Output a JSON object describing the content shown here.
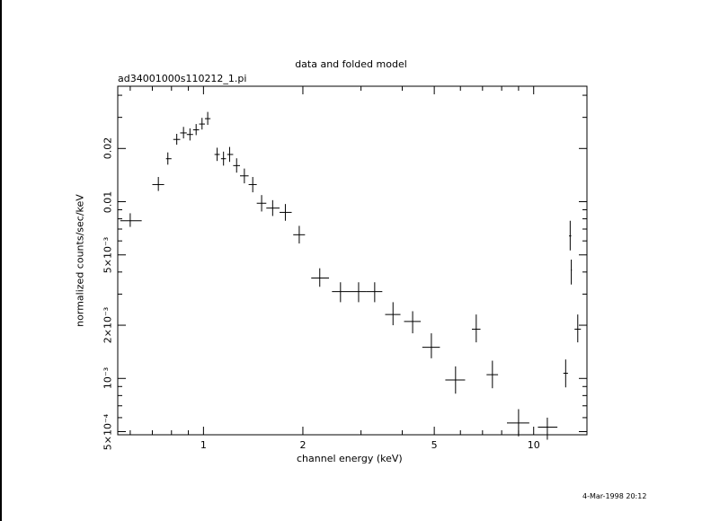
{
  "chart_data": {
    "type": "scatter",
    "title": "data and folded model",
    "subtitle": "ad34001000s110212_1.pi",
    "xlabel": "channel energy (keV)",
    "ylabel": "normalized counts/sec/keV",
    "xscale": "log",
    "yscale": "log",
    "xlim": [
      0.55,
      14.5
    ],
    "ylim": [
      0.00048,
      0.045
    ],
    "x_tick_labels": [
      "1",
      "2",
      "5",
      "10"
    ],
    "x_tick_values": [
      1,
      2,
      5,
      10
    ],
    "y_tick_labels": [
      "5×10⁻⁴",
      "10⁻³",
      "2×10⁻³",
      "5×10⁻³",
      "0.01",
      "0.02"
    ],
    "y_tick_values": [
      0.0005,
      0.001,
      0.002,
      0.005,
      0.01,
      0.02
    ],
    "grid": false,
    "points": [
      {
        "x": 0.6,
        "xlo": 0.56,
        "xhi": 0.65,
        "y": 0.0078,
        "ylo": 0.0072,
        "yhi": 0.0086
      },
      {
        "x": 0.73,
        "xlo": 0.7,
        "xhi": 0.76,
        "y": 0.0125,
        "ylo": 0.0115,
        "yhi": 0.0138
      },
      {
        "x": 0.78,
        "xlo": 0.77,
        "xhi": 0.8,
        "y": 0.0175,
        "ylo": 0.0162,
        "yhi": 0.019
      },
      {
        "x": 0.83,
        "xlo": 0.81,
        "xhi": 0.85,
        "y": 0.0225,
        "ylo": 0.021,
        "yhi": 0.0242
      },
      {
        "x": 0.87,
        "xlo": 0.85,
        "xhi": 0.89,
        "y": 0.0245,
        "ylo": 0.0228,
        "yhi": 0.0265
      },
      {
        "x": 0.91,
        "xlo": 0.89,
        "xhi": 0.93,
        "y": 0.024,
        "ylo": 0.0222,
        "yhi": 0.026
      },
      {
        "x": 0.95,
        "xlo": 0.93,
        "xhi": 0.97,
        "y": 0.0255,
        "ylo": 0.0238,
        "yhi": 0.0275
      },
      {
        "x": 0.99,
        "xlo": 0.97,
        "xhi": 1.01,
        "y": 0.0275,
        "ylo": 0.0256,
        "yhi": 0.0298
      },
      {
        "x": 1.03,
        "xlo": 1.01,
        "xhi": 1.05,
        "y": 0.0295,
        "ylo": 0.0272,
        "yhi": 0.0322
      },
      {
        "x": 1.1,
        "xlo": 1.08,
        "xhi": 1.12,
        "y": 0.0185,
        "ylo": 0.017,
        "yhi": 0.0202
      },
      {
        "x": 1.15,
        "xlo": 1.13,
        "xhi": 1.17,
        "y": 0.0175,
        "ylo": 0.016,
        "yhi": 0.0192
      },
      {
        "x": 1.2,
        "xlo": 1.18,
        "xhi": 1.23,
        "y": 0.0185,
        "ylo": 0.0168,
        "yhi": 0.0204
      },
      {
        "x": 1.26,
        "xlo": 1.23,
        "xhi": 1.29,
        "y": 0.016,
        "ylo": 0.0146,
        "yhi": 0.0176
      },
      {
        "x": 1.33,
        "xlo": 1.29,
        "xhi": 1.37,
        "y": 0.014,
        "ylo": 0.0127,
        "yhi": 0.0154
      },
      {
        "x": 1.41,
        "xlo": 1.37,
        "xhi": 1.45,
        "y": 0.0125,
        "ylo": 0.0113,
        "yhi": 0.0138
      },
      {
        "x": 1.5,
        "xlo": 1.45,
        "xhi": 1.55,
        "y": 0.0098,
        "ylo": 0.0088,
        "yhi": 0.0109
      },
      {
        "x": 1.62,
        "xlo": 1.55,
        "xhi": 1.7,
        "y": 0.0092,
        "ylo": 0.0083,
        "yhi": 0.0102
      },
      {
        "x": 1.77,
        "xlo": 1.7,
        "xhi": 1.85,
        "y": 0.0087,
        "ylo": 0.0078,
        "yhi": 0.0097
      },
      {
        "x": 1.95,
        "xlo": 1.87,
        "xhi": 2.03,
        "y": 0.0065,
        "ylo": 0.0058,
        "yhi": 0.0073
      },
      {
        "x": 2.25,
        "xlo": 2.12,
        "xhi": 2.4,
        "y": 0.0037,
        "ylo": 0.0033,
        "yhi": 0.0042
      },
      {
        "x": 2.6,
        "xlo": 2.45,
        "xhi": 2.78,
        "y": 0.0031,
        "ylo": 0.0027,
        "yhi": 0.0035
      },
      {
        "x": 2.95,
        "xlo": 2.78,
        "xhi": 3.12,
        "y": 0.0031,
        "ylo": 0.0027,
        "yhi": 0.0035
      },
      {
        "x": 3.3,
        "xlo": 3.12,
        "xhi": 3.48,
        "y": 0.0031,
        "ylo": 0.0027,
        "yhi": 0.0035
      },
      {
        "x": 3.75,
        "xlo": 3.55,
        "xhi": 3.95,
        "y": 0.0023,
        "ylo": 0.002,
        "yhi": 0.0027
      },
      {
        "x": 4.3,
        "xlo": 4.05,
        "xhi": 4.55,
        "y": 0.0021,
        "ylo": 0.0018,
        "yhi": 0.0024
      },
      {
        "x": 4.9,
        "xlo": 4.6,
        "xhi": 5.2,
        "y": 0.0015,
        "ylo": 0.0013,
        "yhi": 0.0018
      },
      {
        "x": 5.8,
        "xlo": 5.4,
        "xhi": 6.2,
        "y": 0.00098,
        "ylo": 0.00082,
        "yhi": 0.00117
      },
      {
        "x": 6.7,
        "xlo": 6.5,
        "xhi": 6.9,
        "y": 0.0019,
        "ylo": 0.0016,
        "yhi": 0.0023
      },
      {
        "x": 7.5,
        "xlo": 7.2,
        "xhi": 7.8,
        "y": 0.00105,
        "ylo": 0.00088,
        "yhi": 0.00126
      },
      {
        "x": 9.0,
        "xlo": 8.3,
        "xhi": 9.7,
        "y": 0.00056,
        "ylo": 0.00047,
        "yhi": 0.00067
      },
      {
        "x": 11.0,
        "xlo": 10.3,
        "xhi": 11.8,
        "y": 0.00053,
        "ylo": 0.00045,
        "yhi": 0.0006
      },
      {
        "x": 12.5,
        "xlo": 12.3,
        "xhi": 12.7,
        "y": 0.00107,
        "ylo": 0.00089,
        "yhi": 0.00128
      },
      {
        "x": 12.9,
        "xlo": 12.8,
        "xhi": 13.0,
        "y": 0.0064,
        "ylo": 0.0053,
        "yhi": 0.0078
      },
      {
        "x": 13.0,
        "xlo": 12.95,
        "xhi": 13.05,
        "y": 0.0041,
        "ylo": 0.0034,
        "yhi": 0.0047
      },
      {
        "x": 13.6,
        "xlo": 13.3,
        "xhi": 13.9,
        "y": 0.0019,
        "ylo": 0.0016,
        "yhi": 0.0023
      }
    ]
  },
  "timestamp": "4-Mar-1998 20:12"
}
